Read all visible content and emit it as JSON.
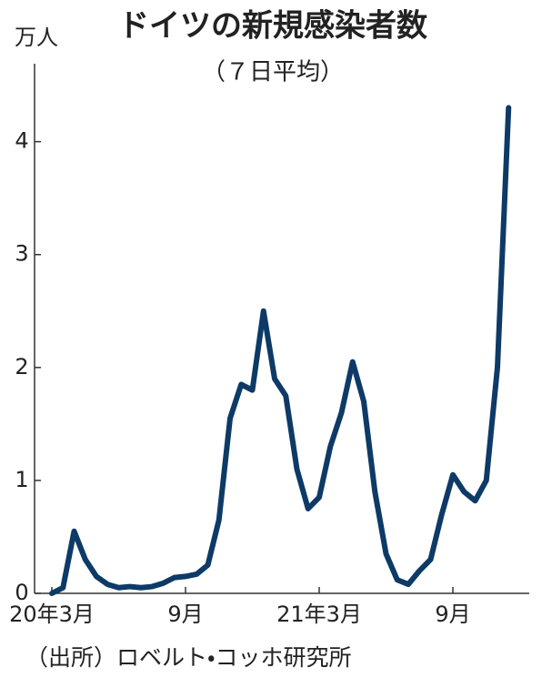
{
  "chart_data": {
    "type": "line",
    "title": "ドイツの新規感染者数",
    "subtitle": "（７日平均）",
    "y_unit_label": "万人",
    "source": "（出所）ロベルト・コッホ研究所",
    "categories": [
      "20年3月",
      null,
      null,
      null,
      null,
      null,
      null,
      null,
      null,
      null,
      null,
      null,
      "9月",
      null,
      null,
      null,
      null,
      null,
      null,
      null,
      null,
      null,
      null,
      null,
      "21年3月",
      null,
      null,
      null,
      null,
      null,
      null,
      null,
      null,
      null,
      null,
      null,
      "9月",
      null,
      null,
      null,
      null,
      null
    ],
    "values": [
      0.0,
      0.05,
      0.55,
      0.3,
      0.15,
      0.08,
      0.05,
      0.06,
      0.05,
      0.06,
      0.09,
      0.14,
      0.15,
      0.17,
      0.25,
      0.65,
      1.55,
      1.85,
      1.8,
      2.5,
      1.9,
      1.75,
      1.1,
      0.75,
      0.85,
      1.3,
      1.6,
      2.05,
      1.7,
      0.9,
      0.35,
      0.12,
      0.08,
      0.2,
      0.3,
      0.7,
      1.05,
      0.9,
      0.82,
      1.0,
      2.0,
      4.3
    ],
    "color": "#0d3a66",
    "ylim": [
      0,
      4.65
    ],
    "yticks": [
      0,
      1,
      2,
      3,
      4
    ]
  }
}
